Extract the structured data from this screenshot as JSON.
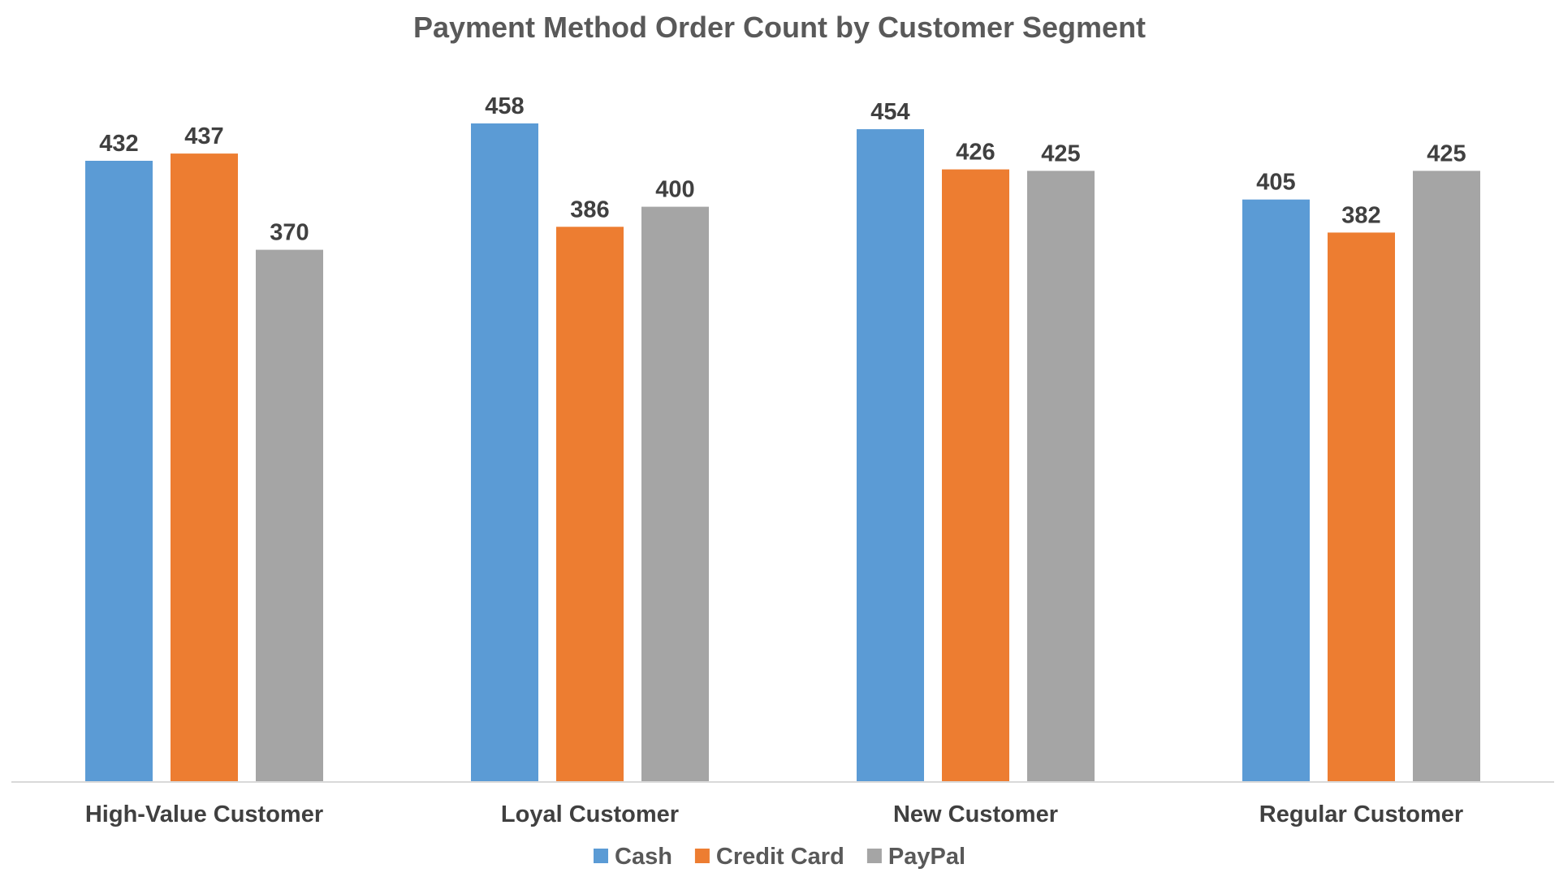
{
  "chart_data": {
    "type": "bar",
    "title": "Payment Method Order Count by Customer Segment",
    "xlabel": "",
    "ylabel": "",
    "categories": [
      "High-Value Customer",
      "Loyal Customer",
      "New Customer",
      "Regular Customer"
    ],
    "series": [
      {
        "name": "Cash",
        "color": "#5B9BD5",
        "values": [
          432,
          458,
          454,
          405
        ]
      },
      {
        "name": "Credit Card",
        "color": "#ED7D31",
        "values": [
          437,
          386,
          426,
          382
        ]
      },
      {
        "name": "PayPal",
        "color": "#A5A5A5",
        "values": [
          370,
          400,
          425,
          425
        ]
      }
    ],
    "ylim": [
      0,
      458
    ],
    "grid": false,
    "y_axis_visible": false,
    "data_labels": true,
    "legend_position": "bottom"
  }
}
